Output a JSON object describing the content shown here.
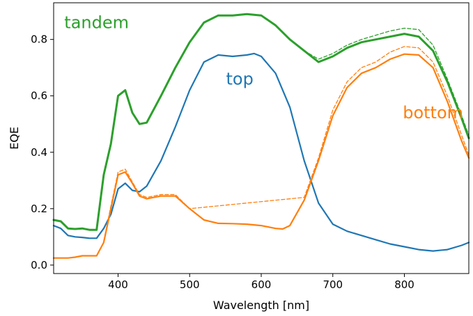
{
  "chart_data": {
    "type": "line",
    "title": "",
    "xlabel": "Wavelength [nm]",
    "ylabel": "EQE",
    "xlim": [
      310,
      890
    ],
    "ylim": [
      -0.03,
      0.93
    ],
    "grid": false,
    "legend": "none",
    "xticks": [
      400,
      500,
      600,
      700,
      800
    ],
    "yticks": [
      0.0,
      0.2,
      0.4,
      0.6,
      0.8
    ],
    "ytick_labels": [
      "0.0",
      "0.2",
      "0.4",
      "0.6",
      "0.8"
    ],
    "annotations": [
      {
        "text": "tandem",
        "x": 370,
        "y": 0.84,
        "color": "#2ca02c"
      },
      {
        "text": "top",
        "x": 570,
        "y": 0.64,
        "color": "#1f77b4"
      },
      {
        "text": "bottom",
        "x": 840,
        "y": 0.52,
        "color": "#ff7f0e"
      }
    ],
    "series": [
      {
        "color": "#2ca02c",
        "style": "solid",
        "width": 3,
        "x": [
          310,
          320,
          330,
          340,
          350,
          360,
          370,
          380,
          390,
          400,
          410,
          420,
          430,
          440,
          460,
          480,
          500,
          520,
          540,
          560,
          580,
          600,
          620,
          640,
          660,
          680,
          700,
          720,
          740,
          760,
          780,
          800,
          820,
          840,
          860,
          880,
          890
        ],
        "y": [
          0.16,
          0.155,
          0.13,
          0.128,
          0.13,
          0.125,
          0.125,
          0.32,
          0.43,
          0.6,
          0.62,
          0.54,
          0.5,
          0.505,
          0.6,
          0.7,
          0.79,
          0.86,
          0.885,
          0.885,
          0.89,
          0.885,
          0.85,
          0.8,
          0.76,
          0.72,
          0.74,
          0.77,
          0.79,
          0.8,
          0.81,
          0.82,
          0.81,
          0.76,
          0.65,
          0.52,
          0.45
        ]
      },
      {
        "color": "#2ca02c",
        "style": "dashed",
        "width": 1.3,
        "x": [
          660,
          680,
          700,
          720,
          740,
          760,
          780,
          800,
          820,
          840,
          860,
          880,
          890
        ],
        "y": [
          0.76,
          0.73,
          0.75,
          0.78,
          0.8,
          0.815,
          0.83,
          0.84,
          0.835,
          0.78,
          0.66,
          0.53,
          0.46
        ]
      },
      {
        "color": "#1f77b4",
        "style": "solid",
        "width": 2.2,
        "x": [
          310,
          320,
          330,
          340,
          350,
          360,
          370,
          380,
          390,
          400,
          410,
          420,
          430,
          440,
          460,
          480,
          500,
          520,
          540,
          560,
          580,
          590,
          600,
          620,
          640,
          660,
          680,
          700,
          720,
          740,
          760,
          780,
          800,
          820,
          840,
          860,
          880,
          890
        ],
        "y": [
          0.14,
          0.13,
          0.105,
          0.1,
          0.098,
          0.095,
          0.095,
          0.13,
          0.18,
          0.27,
          0.29,
          0.265,
          0.26,
          0.28,
          0.37,
          0.49,
          0.62,
          0.72,
          0.745,
          0.74,
          0.745,
          0.75,
          0.74,
          0.68,
          0.56,
          0.37,
          0.22,
          0.145,
          0.12,
          0.105,
          0.09,
          0.075,
          0.065,
          0.055,
          0.05,
          0.055,
          0.07,
          0.08
        ]
      },
      {
        "color": "#ff7f0e",
        "style": "solid",
        "width": 2.2,
        "x": [
          310,
          320,
          330,
          340,
          350,
          360,
          370,
          380,
          390,
          400,
          410,
          420,
          430,
          440,
          460,
          480,
          500,
          520,
          540,
          560,
          580,
          600,
          620,
          630,
          640,
          660,
          680,
          700,
          720,
          740,
          760,
          780,
          800,
          820,
          840,
          860,
          880,
          890
        ],
        "y": [
          0.025,
          0.025,
          0.025,
          0.028,
          0.033,
          0.033,
          0.033,
          0.08,
          0.2,
          0.32,
          0.33,
          0.29,
          0.245,
          0.235,
          0.245,
          0.245,
          0.2,
          0.16,
          0.148,
          0.147,
          0.145,
          0.14,
          0.13,
          0.128,
          0.14,
          0.23,
          0.37,
          0.53,
          0.63,
          0.68,
          0.7,
          0.73,
          0.748,
          0.745,
          0.7,
          0.58,
          0.44,
          0.38
        ]
      },
      {
        "color": "#ff7f0e",
        "style": "dashed",
        "width": 1.3,
        "x": [
          380,
          390,
          400,
          410,
          420,
          430,
          440,
          460,
          480,
          500,
          660,
          680,
          700,
          720,
          740,
          760,
          780,
          800,
          820,
          840,
          860,
          880,
          890
        ],
        "y": [
          0.085,
          0.21,
          0.33,
          0.34,
          0.295,
          0.25,
          0.24,
          0.25,
          0.25,
          0.2,
          0.24,
          0.38,
          0.55,
          0.65,
          0.7,
          0.72,
          0.755,
          0.775,
          0.77,
          0.72,
          0.6,
          0.46,
          0.39
        ]
      }
    ]
  }
}
